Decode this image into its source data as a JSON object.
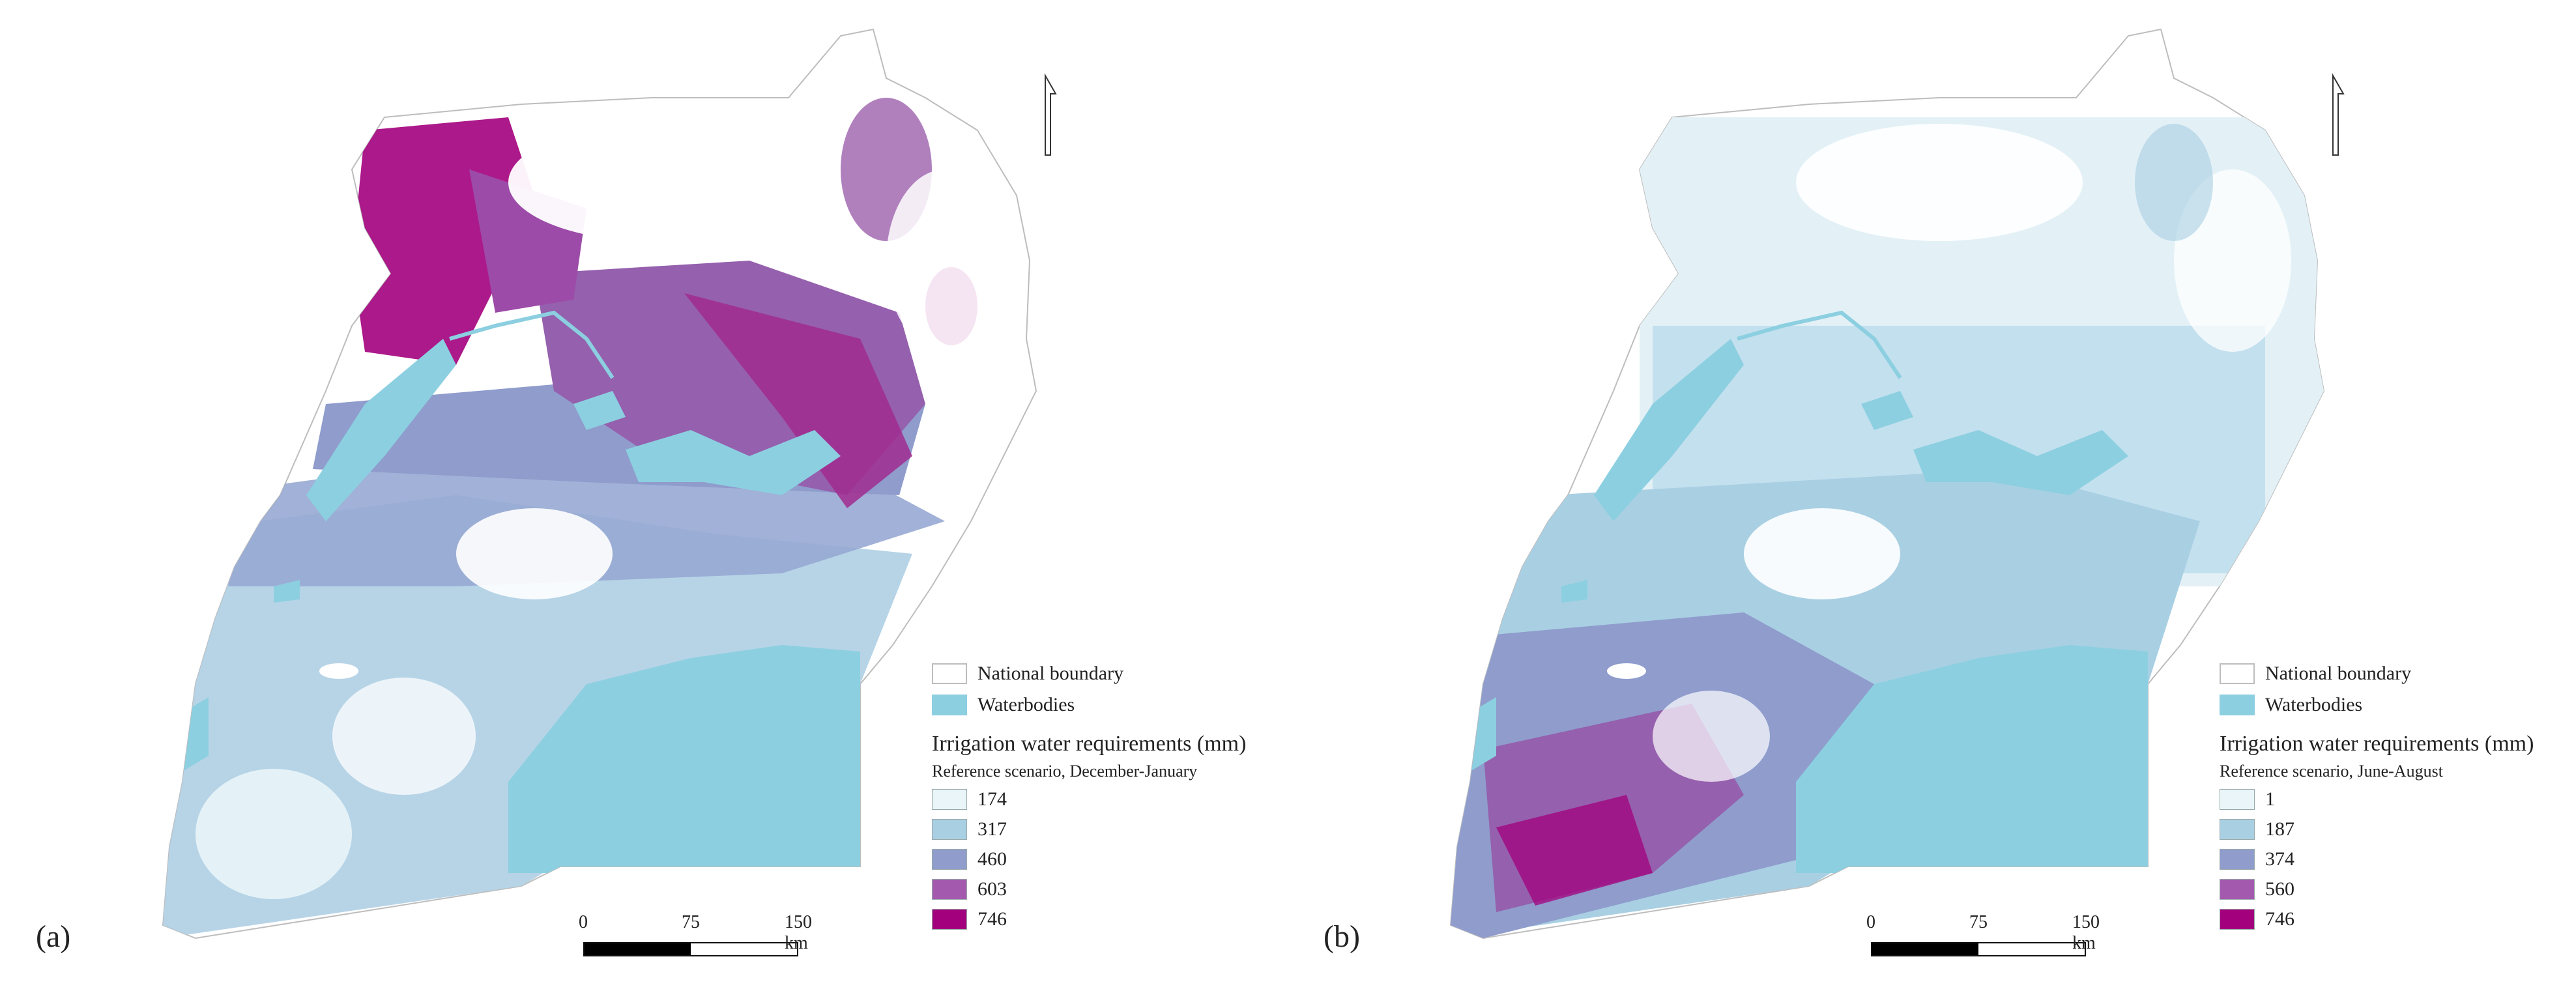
{
  "panels": [
    {
      "id": "a",
      "label": "(a)",
      "legend": {
        "boundary_label": "National boundary",
        "waterbodies_label": "Waterbodies",
        "heading": "Irrigation water requirements (mm)",
        "subheading": "Reference scenario, December-January",
        "classes": [
          {
            "value": "174",
            "color": "#e9f5f8"
          },
          {
            "value": "317",
            "color": "#a9cfe3"
          },
          {
            "value": "460",
            "color": "#8f9ccc"
          },
          {
            "value": "603",
            "color": "#a35aae"
          },
          {
            "value": "746",
            "color": "#a3007d"
          }
        ]
      },
      "scale": {
        "ticks": [
          "0",
          "75",
          "150 km"
        ]
      }
    },
    {
      "id": "b",
      "label": "(b)",
      "legend": {
        "boundary_label": "National boundary",
        "waterbodies_label": "Waterbodies",
        "heading": "Irrigation water requirements (mm)",
        "subheading": "Reference scenario, June-August",
        "classes": [
          {
            "value": "1",
            "color": "#e9f5f8"
          },
          {
            "value": "187",
            "color": "#a9cfe3"
          },
          {
            "value": "374",
            "color": "#8f9ccc"
          },
          {
            "value": "560",
            "color": "#a35aae"
          },
          {
            "value": "746",
            "color": "#a3007d"
          }
        ]
      },
      "scale": {
        "ticks": [
          "0",
          "75",
          "150 km"
        ]
      }
    }
  ],
  "colors": {
    "water": "#8ccfe0",
    "boundary": "#bdbdbd"
  },
  "icons": {
    "north_arrow": "north-arrow-icon"
  }
}
